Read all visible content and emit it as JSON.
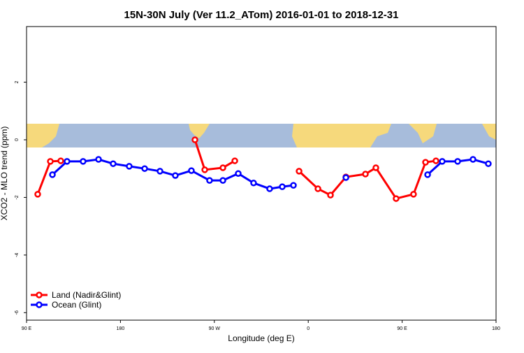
{
  "chart_data": {
    "type": "line",
    "title": "15N-30N July (Ver 11.2_ATom)   2016-01-01 to 2018-12-31",
    "x_label": "Longitude (deg E)",
    "y_label": "XCO2 - MLO trend (ppm)",
    "xlim": [
      90,
      540
    ],
    "ylim": [
      -6.26,
      3.93
    ],
    "xticks": [
      {
        "value": 90,
        "label": "90 E"
      },
      {
        "value": 180,
        "label": "180"
      },
      {
        "value": 270,
        "label": "90 W"
      },
      {
        "value": 360,
        "label": "0"
      },
      {
        "value": 450,
        "label": "90 E"
      },
      {
        "value": 540,
        "label": "180"
      }
    ],
    "yticks": [
      2,
      0,
      -2,
      -4,
      -6
    ],
    "legend": "bottom-left",
    "series": [
      {
        "name": "Land (Nadir&Glint)",
        "color": "#ff0000",
        "x": [
          100.7,
          112.8,
          122.8,
          null,
          251.4,
          260.8,
          278.2,
          289.6,
          null,
          351.2,
          369.3,
          381.3,
          396.1,
          414.8,
          424.8,
          444.2,
          460.9,
          472.4,
          482.4
        ],
        "values": [
          -1.89,
          -0.75,
          -0.73,
          null,
          0.0,
          -1.04,
          -0.97,
          -0.73,
          null,
          -1.09,
          -1.7,
          -1.92,
          -1.29,
          -1.19,
          -0.97,
          -2.04,
          -1.89,
          -0.78,
          -0.73
        ]
      },
      {
        "name": "Ocean (Glint)",
        "color": "#0000ff",
        "x": [
          114.8,
          128.8,
          144.2,
          159.0,
          173.0,
          188.4,
          203.2,
          217.9,
          232.6,
          248.0,
          265.4,
          278.2,
          292.9,
          307.6,
          323.0,
          335.1,
          345.8,
          null,
          396.1,
          null,
          474.4,
          488.4,
          503.2,
          517.9,
          532.6
        ],
        "values": [
          -1.21,
          -0.75,
          -0.75,
          -0.68,
          -0.83,
          -0.92,
          -1.0,
          -1.09,
          -1.24,
          -1.07,
          -1.41,
          -1.41,
          -1.17,
          -1.5,
          -1.7,
          -1.63,
          -1.58,
          null,
          -1.31,
          null,
          -1.21,
          -0.75,
          -0.75,
          -0.68,
          -0.83
        ]
      }
    ]
  }
}
